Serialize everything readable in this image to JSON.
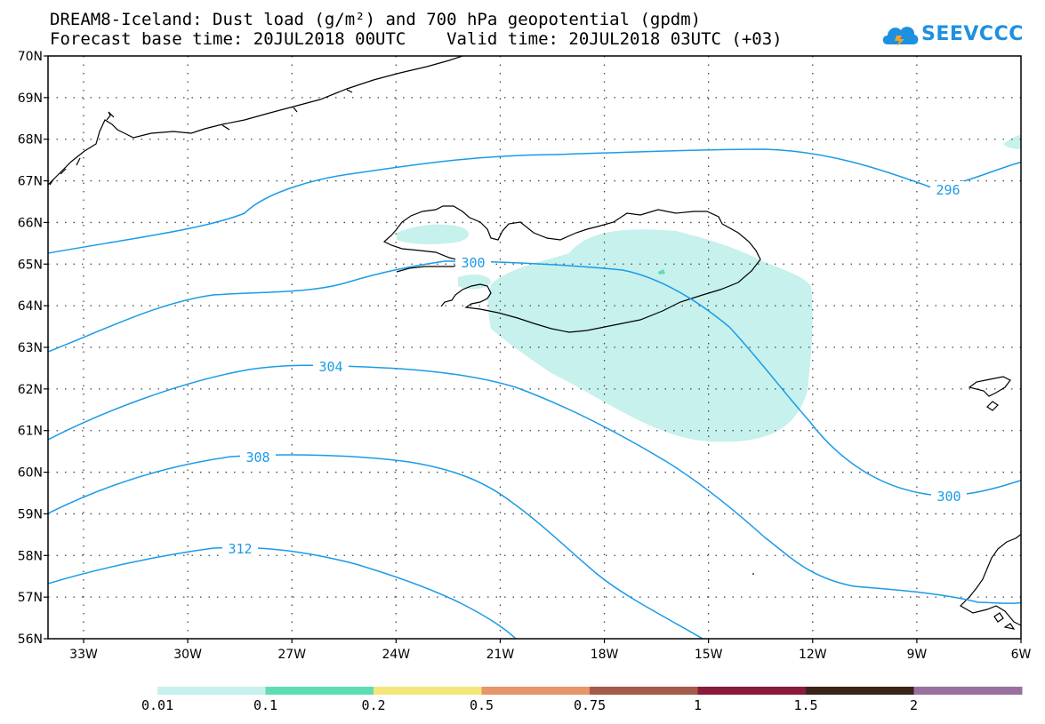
{
  "header": {
    "title_line1": "DREAM8-Iceland: Dust load (g/m²) and 700 hPa geopotential (gpdm)",
    "title_line2": "Forecast base time: 20JUL2018 00UTC    Valid time: 20JUL2018 03UTC (+03)"
  },
  "logo": {
    "text": "SEEVCCC",
    "color": "#1e90e0"
  },
  "axes": {
    "lat_labels": [
      "70N",
      "69N",
      "68N",
      "67N",
      "66N",
      "65N",
      "64N",
      "63N",
      "62N",
      "61N",
      "60N",
      "59N",
      "58N",
      "57N",
      "56N"
    ],
    "lon_labels": [
      "33W",
      "30W",
      "27W",
      "24W",
      "21W",
      "18W",
      "15W",
      "12W",
      "9W",
      "6W"
    ]
  },
  "contours": {
    "color": "#1a9be8",
    "labels": [
      "296",
      "300",
      "300",
      "304",
      "308",
      "312"
    ]
  },
  "dust": {
    "fill": "#c6f1ec",
    "small_patch": "#60dcb4"
  },
  "colorbar": {
    "colors": [
      "#c6f1ec",
      "#60dcb4",
      "#f5e67a",
      "#e8956a",
      "#a55a4a",
      "#8a1a3c",
      "#3a2418",
      "#9a70a0"
    ],
    "labels": [
      "0.01",
      "0.1",
      "0.2",
      "0.5",
      "0.75",
      "1",
      "1.5",
      "2"
    ]
  }
}
